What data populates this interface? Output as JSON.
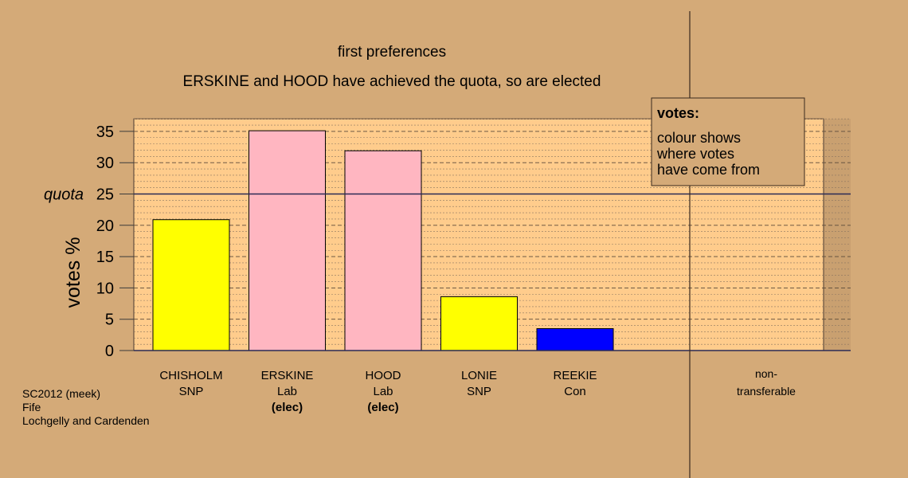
{
  "chart_data": {
    "type": "bar",
    "title": "first preferences",
    "subtitle": "ERSKINE and HOOD have achieved the quota, so are elected",
    "ylabel": "votes %",
    "ylim": [
      0,
      37
    ],
    "yticks": [
      0,
      5,
      10,
      15,
      20,
      25,
      30,
      35
    ],
    "grid": true,
    "quota": {
      "label": "quota",
      "value": 25
    },
    "bars": [
      {
        "name": "CHISHOLM",
        "party": "SNP",
        "status": "",
        "value": 20.9,
        "color": "#ffff00"
      },
      {
        "name": "ERSKINE",
        "party": "Lab",
        "status": "(elec)",
        "value": 35.1,
        "color": "#ffb6c1"
      },
      {
        "name": "HOOD",
        "party": "Lab",
        "status": "(elec)",
        "value": 31.9,
        "color": "#ffb6c1"
      },
      {
        "name": "LONIE",
        "party": "SNP",
        "status": "",
        "value": 8.6,
        "color": "#ffff00"
      },
      {
        "name": "REEKIE",
        "party": "Con",
        "status": "",
        "value": 3.5,
        "color": "#0000ff"
      }
    ],
    "nontransferable": {
      "line1": "non-",
      "line2": "transferable",
      "value": 0
    },
    "legend": {
      "title": "votes:",
      "lines": [
        "colour shows",
        "where votes",
        "have come from"
      ],
      "placement": "top-right"
    }
  },
  "footer": {
    "lines": [
      "SC2012 (meek)",
      "Fife",
      "Lochgelly and Cardenden"
    ]
  },
  "colors": {
    "background": "#d4aa78",
    "plot_area": "#ffcc8c",
    "quota_line": "#2a2a55"
  }
}
